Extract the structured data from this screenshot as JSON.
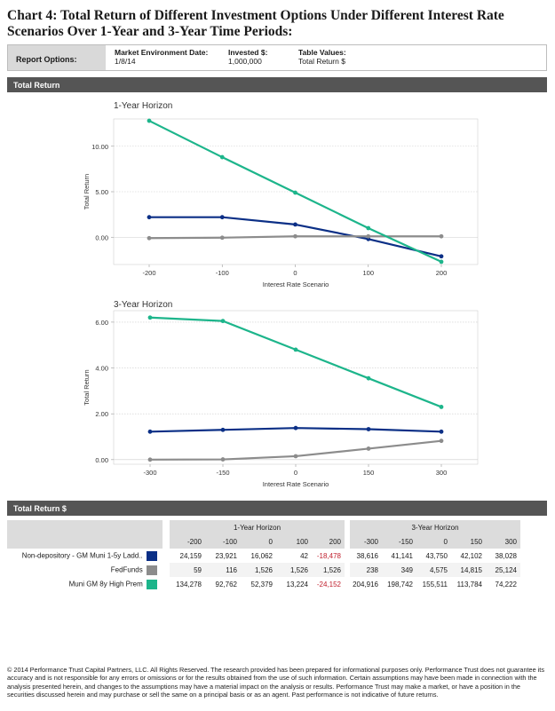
{
  "title": "Chart 4: Total Return of Different Investment Options Under Different Interest Rate Scenarios Over 1-Year and 3-Year Time Periods:",
  "report_options": {
    "label": "Report Options:",
    "market_date_label": "Market Environment Date:",
    "market_date": "1/8/14",
    "invested_label": "Invested $:",
    "invested": "1,000,000",
    "table_values_label": "Table Values:",
    "table_values": "Total Return $"
  },
  "section1_title": "Total Return",
  "section2_title": "Total Return $",
  "colors": {
    "muni_ladder": "#0b2f86",
    "fedfunds": "#8c8c8c",
    "muni_high": "#1db58b",
    "negative": "#c0202e"
  },
  "chart_data": [
    {
      "type": "line",
      "title": "1-Year Horizon",
      "xlabel": "Interest Rate Scenario",
      "ylabel": "Total Return",
      "x": [
        -200,
        -100,
        0,
        100,
        200
      ],
      "x_ticks": [
        "-200",
        "-100",
        "0",
        "100",
        "200"
      ],
      "y_ticks": [
        "0.00",
        "5.00",
        "10.00"
      ],
      "ylim": [
        -3,
        13
      ],
      "grid": true,
      "series": [
        {
          "values": [
            2.2,
            2.2,
            1.4,
            -0.2,
            -2.1
          ],
          "color": "#0b2f86"
        },
        {
          "values": [
            -0.1,
            -0.05,
            0.1,
            0.1,
            0.1
          ],
          "color": "#8c8c8c"
        },
        {
          "values": [
            12.8,
            8.8,
            4.9,
            1.0,
            -2.7
          ],
          "color": "#1db58b"
        }
      ]
    },
    {
      "type": "line",
      "title": "3-Year Horizon",
      "xlabel": "Interest Rate Scenario",
      "ylabel": "Total Return",
      "x": [
        -300,
        -150,
        0,
        150,
        300
      ],
      "x_ticks": [
        "-300",
        "-150",
        "0",
        "150",
        "300"
      ],
      "y_ticks": [
        "0.00",
        "2.00",
        "4.00",
        "6.00"
      ],
      "ylim": [
        -0.2,
        6.5
      ],
      "grid": true,
      "series": [
        {
          "values": [
            1.22,
            1.3,
            1.38,
            1.33,
            1.22
          ],
          "color": "#0b2f86"
        },
        {
          "values": [
            0.0,
            0.01,
            0.15,
            0.48,
            0.82
          ],
          "color": "#8c8c8c"
        },
        {
          "values": [
            6.2,
            6.05,
            4.8,
            3.55,
            2.3
          ],
          "color": "#1db58b"
        }
      ]
    }
  ],
  "table": {
    "group1": "1-Year Horizon",
    "group2": "3-Year Horizon",
    "cols1": [
      "-200",
      "-100",
      "0",
      "100",
      "200"
    ],
    "cols2": [
      "-300",
      "-150",
      "0",
      "150",
      "300"
    ],
    "rows": [
      {
        "name": "Non-depository - GM Muni 1-5y Ladd..",
        "color": "#0b2f86",
        "v1": [
          "24,159",
          "23,921",
          "16,062",
          "42",
          "-18,478"
        ],
        "v2": [
          "38,616",
          "41,141",
          "43,750",
          "42,102",
          "38,028"
        ]
      },
      {
        "name": "FedFunds",
        "color": "#8c8c8c",
        "v1": [
          "59",
          "116",
          "1,526",
          "1,526",
          "1,526"
        ],
        "v2": [
          "238",
          "349",
          "4,575",
          "14,815",
          "25,124"
        ]
      },
      {
        "name": "Muni GM 8y High Prem",
        "color": "#1db58b",
        "v1": [
          "134,278",
          "92,762",
          "52,379",
          "13,224",
          "-24,152"
        ],
        "v2": [
          "204,916",
          "198,742",
          "155,511",
          "113,784",
          "74,222"
        ]
      }
    ]
  },
  "footer": "© 2014 Performance Trust Capital Partners, LLC. All Rights Reserved. The research provided has been prepared for informational purposes only. Performance Trust does not guarantee its accuracy and is not responsible for any errors or omissions or for the results obtained from the use of such information. Certain assumptions may have been made in connection with the analysis presented herein, and changes to the assumptions may have a material impact on the analysis or results. Performance Trust may make a market, or have a position in the securities discussed herein and may purchase or sell the same on a principal basis or as an agent. Past performance is not indicative of future returns."
}
